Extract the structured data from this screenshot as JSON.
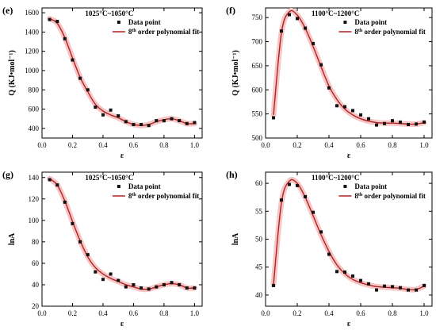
{
  "chart_data": [
    {
      "type": "scatter",
      "panel_label": "(e)",
      "title": "1025°C~1050°C",
      "xlabel": "ε",
      "ylabel": "Q (KJ•mol⁻¹)",
      "xlim": [
        0,
        1.05
      ],
      "ylim": [
        300,
        1650
      ],
      "xticks": [
        0.0,
        0.2,
        0.4,
        0.6,
        0.8,
        1.0
      ],
      "yticks": [
        400,
        600,
        800,
        1000,
        1200,
        1400,
        1600
      ],
      "legend": [
        "Data point",
        "8th order polynomial fit"
      ],
      "legend_position": "top-right",
      "series": [
        {
          "name": "Data point",
          "x": [
            0.05,
            0.1,
            0.15,
            0.2,
            0.25,
            0.3,
            0.35,
            0.4,
            0.45,
            0.5,
            0.55,
            0.6,
            0.65,
            0.7,
            0.75,
            0.8,
            0.85,
            0.9,
            0.95,
            1.0
          ],
          "y": [
            1530,
            1510,
            1330,
            1110,
            920,
            800,
            620,
            540,
            590,
            530,
            470,
            440,
            440,
            430,
            480,
            480,
            500,
            480,
            450,
            460
          ]
        },
        {
          "name": "8th order polynomial fit",
          "x": [
            0.05,
            0.1,
            0.15,
            0.2,
            0.25,
            0.3,
            0.35,
            0.4,
            0.45,
            0.5,
            0.55,
            0.6,
            0.65,
            0.7,
            0.75,
            0.8,
            0.85,
            0.9,
            0.95,
            1.0
          ],
          "y": [
            1540,
            1490,
            1340,
            1130,
            930,
            780,
            650,
            580,
            540,
            510,
            470,
            440,
            430,
            440,
            470,
            490,
            500,
            480,
            450,
            450
          ]
        }
      ]
    },
    {
      "type": "scatter",
      "panel_label": "(f)",
      "title": "1100°C~1200°C",
      "xlabel": "ε",
      "ylabel": "Q (KJ•mol⁻¹)",
      "xlim": [
        0,
        1.05
      ],
      "ylim": [
        500,
        770
      ],
      "xticks": [
        0.0,
        0.2,
        0.4,
        0.6,
        0.8,
        1.0
      ],
      "yticks": [
        500,
        550,
        600,
        650,
        700,
        750
      ],
      "legend": [
        "Data point",
        "8th order polynomial fit"
      ],
      "legend_position": "top-right",
      "series": [
        {
          "name": "Data point",
          "x": [
            0.05,
            0.1,
            0.15,
            0.2,
            0.25,
            0.3,
            0.35,
            0.4,
            0.45,
            0.5,
            0.55,
            0.6,
            0.65,
            0.7,
            0.75,
            0.8,
            0.85,
            0.9,
            0.95,
            1.0
          ],
          "y": [
            542,
            722,
            756,
            748,
            728,
            696,
            652,
            604,
            567,
            565,
            557,
            548,
            540,
            527,
            530,
            536,
            533,
            528,
            529,
            533
          ]
        },
        {
          "name": "8th order polynomial fit",
          "x": [
            0.05,
            0.1,
            0.15,
            0.2,
            0.25,
            0.3,
            0.35,
            0.4,
            0.45,
            0.5,
            0.55,
            0.6,
            0.65,
            0.7,
            0.75,
            0.8,
            0.85,
            0.9,
            0.95,
            1.0
          ],
          "y": [
            548,
            718,
            762,
            755,
            728,
            690,
            648,
            608,
            580,
            560,
            548,
            540,
            535,
            532,
            531,
            531,
            530,
            529,
            529,
            532
          ]
        }
      ]
    },
    {
      "type": "scatter",
      "panel_label": "(g)",
      "title": "1025°C~1050°C",
      "xlabel": "ε",
      "ylabel": "lnA",
      "xlim": [
        0,
        1.05
      ],
      "ylim": [
        20,
        145
      ],
      "xticks": [
        0.0,
        0.2,
        0.4,
        0.6,
        0.8,
        1.0
      ],
      "yticks": [
        20,
        40,
        60,
        80,
        100,
        120,
        140
      ],
      "legend": [
        "Data point",
        "8th order polynomial fit"
      ],
      "legend_position": "top-right",
      "series": [
        {
          "name": "Data point",
          "x": [
            0.05,
            0.1,
            0.15,
            0.2,
            0.25,
            0.3,
            0.35,
            0.4,
            0.45,
            0.5,
            0.55,
            0.6,
            0.65,
            0.7,
            0.75,
            0.8,
            0.85,
            0.9,
            0.95,
            1.0
          ],
          "y": [
            138,
            133,
            117,
            97,
            80,
            68,
            52,
            45,
            50,
            44,
            38,
            40,
            37,
            36,
            38,
            40,
            42,
            40,
            37,
            37
          ]
        },
        {
          "name": "8th order polynomial fit",
          "x": [
            0.05,
            0.1,
            0.15,
            0.2,
            0.25,
            0.3,
            0.35,
            0.4,
            0.45,
            0.5,
            0.55,
            0.6,
            0.65,
            0.7,
            0.75,
            0.8,
            0.85,
            0.9,
            0.95,
            1.0
          ],
          "y": [
            139,
            133,
            118,
            99,
            81,
            66,
            56,
            50,
            46,
            43,
            40,
            38,
            36,
            36,
            38,
            40,
            41,
            40,
            37,
            37
          ]
        }
      ]
    },
    {
      "type": "scatter",
      "panel_label": "(h)",
      "title": "1100°C~1200°C",
      "xlabel": "ε",
      "ylabel": "lnA",
      "xlim": [
        0,
        1.05
      ],
      "ylim": [
        38,
        62
      ],
      "xticks": [
        0.0,
        0.2,
        0.4,
        0.6,
        0.8,
        1.0
      ],
      "yticks": [
        40,
        45,
        50,
        55,
        60
      ],
      "legend": [
        "Data point",
        "8th order polynomial fit"
      ],
      "legend_position": "top-right",
      "series": [
        {
          "name": "Data point",
          "x": [
            0.05,
            0.1,
            0.15,
            0.2,
            0.25,
            0.3,
            0.35,
            0.4,
            0.45,
            0.5,
            0.55,
            0.6,
            0.65,
            0.7,
            0.75,
            0.8,
            0.85,
            0.9,
            0.95,
            1.0
          ],
          "y": [
            41.7,
            57.0,
            59.8,
            59.6,
            57.6,
            54.8,
            51.3,
            47.3,
            44.2,
            44.1,
            43.4,
            42.6,
            42.0,
            40.9,
            41.6,
            41.5,
            41.3,
            40.9,
            40.9,
            41.7
          ]
        },
        {
          "name": "8th order polynomial fit",
          "x": [
            0.05,
            0.1,
            0.15,
            0.2,
            0.25,
            0.3,
            0.35,
            0.4,
            0.45,
            0.5,
            0.55,
            0.6,
            0.65,
            0.7,
            0.75,
            0.8,
            0.85,
            0.9,
            0.95,
            1.0
          ],
          "y": [
            41.9,
            56.5,
            60.4,
            60.0,
            57.5,
            54.2,
            50.8,
            47.8,
            45.4,
            43.8,
            42.8,
            42.2,
            41.8,
            41.5,
            41.4,
            41.3,
            41.2,
            41.0,
            41.0,
            41.6
          ]
        }
      ]
    }
  ],
  "colors": {
    "fit_line": "#b22222",
    "fit_band": "#f7c6c6",
    "marker": "#111111",
    "axis": "#000000"
  },
  "legend_superscript": "th"
}
